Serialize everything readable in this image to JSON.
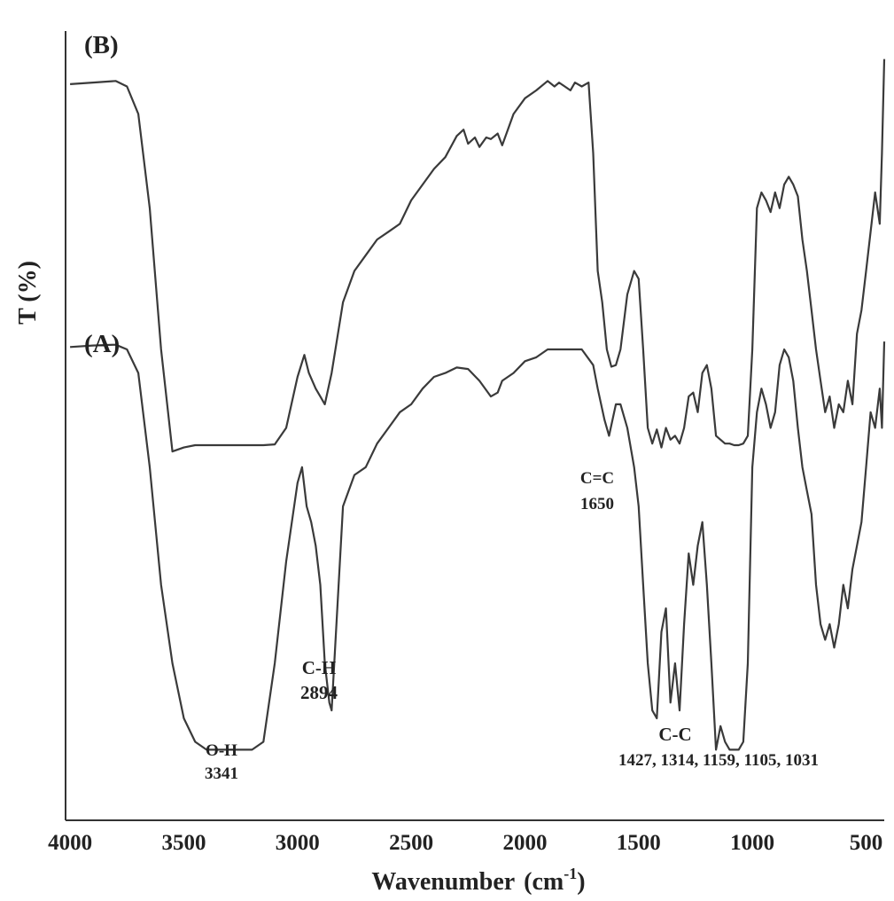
{
  "chart_data": {
    "type": "line",
    "xlabel": "Wavenumber",
    "xlabel_unit_base": "cm",
    "xlabel_unit_exp": "-1",
    "ylabel": "T (%)",
    "xlim": [
      4020,
      420
    ],
    "x_reversed": true,
    "ylim": [
      0,
      1
    ],
    "x_ticks": [
      4000,
      3500,
      3000,
      2500,
      2000,
      1500,
      1000,
      500
    ],
    "grid": false,
    "series": [
      {
        "name": "(B)",
        "x": [
          4000,
          3900,
          3800,
          3750,
          3700,
          3650,
          3600,
          3550,
          3500,
          3450,
          3400,
          3350,
          3300,
          3250,
          3200,
          3150,
          3100,
          3050,
          3000,
          2970,
          2950,
          2920,
          2900,
          2880,
          2850,
          2800,
          2750,
          2700,
          2650,
          2600,
          2550,
          2500,
          2450,
          2400,
          2350,
          2300,
          2270,
          2250,
          2220,
          2200,
          2170,
          2150,
          2120,
          2100,
          2050,
          2000,
          1950,
          1900,
          1870,
          1850,
          1800,
          1780,
          1750,
          1720,
          1700,
          1680,
          1660,
          1640,
          1620,
          1600,
          1580,
          1550,
          1520,
          1500,
          1480,
          1460,
          1440,
          1420,
          1400,
          1380,
          1360,
          1340,
          1320,
          1300,
          1280,
          1260,
          1240,
          1220,
          1200,
          1180,
          1160,
          1140,
          1120,
          1100,
          1080,
          1060,
          1040,
          1020,
          1000,
          980,
          960,
          940,
          920,
          900,
          880,
          860,
          840,
          820,
          800,
          780,
          760,
          740,
          720,
          700,
          680,
          660,
          640,
          620,
          600,
          580,
          560,
          540,
          520,
          500,
          480,
          460,
          440,
          430,
          420
        ],
        "y": [
          0.938,
          0.94,
          0.942,
          0.935,
          0.9,
          0.78,
          0.6,
          0.47,
          0.475,
          0.478,
          0.478,
          0.478,
          0.478,
          0.478,
          0.478,
          0.478,
          0.479,
          0.5,
          0.565,
          0.593,
          0.57,
          0.55,
          0.54,
          0.53,
          0.57,
          0.66,
          0.7,
          0.72,
          0.74,
          0.75,
          0.76,
          0.79,
          0.81,
          0.83,
          0.845,
          0.872,
          0.88,
          0.862,
          0.87,
          0.858,
          0.87,
          0.868,
          0.875,
          0.86,
          0.9,
          0.92,
          0.93,
          0.942,
          0.935,
          0.94,
          0.93,
          0.94,
          0.935,
          0.94,
          0.85,
          0.7,
          0.66,
          0.6,
          0.578,
          0.58,
          0.6,
          0.67,
          0.7,
          0.69,
          0.6,
          0.5,
          0.48,
          0.498,
          0.475,
          0.5,
          0.485,
          0.49,
          0.48,
          0.5,
          0.54,
          0.545,
          0.52,
          0.57,
          0.58,
          0.55,
          0.49,
          0.485,
          0.48,
          0.48,
          0.478,
          0.478,
          0.48,
          0.49,
          0.6,
          0.78,
          0.8,
          0.79,
          0.775,
          0.8,
          0.78,
          0.81,
          0.82,
          0.81,
          0.795,
          0.74,
          0.7,
          0.65,
          0.6,
          0.56,
          0.52,
          0.54,
          0.5,
          0.53,
          0.52,
          0.56,
          0.53,
          0.62,
          0.65,
          0.7,
          0.75,
          0.8,
          0.76,
          0.85,
          0.97
        ]
      },
      {
        "name": "(A)",
        "x": [
          4000,
          3900,
          3800,
          3750,
          3700,
          3650,
          3600,
          3550,
          3500,
          3450,
          3400,
          3350,
          3300,
          3250,
          3200,
          3150,
          3100,
          3050,
          3000,
          2980,
          2960,
          2940,
          2920,
          2900,
          2880,
          2860,
          2850,
          2800,
          2750,
          2700,
          2650,
          2600,
          2550,
          2500,
          2450,
          2400,
          2350,
          2300,
          2250,
          2200,
          2150,
          2120,
          2100,
          2050,
          2000,
          1950,
          1900,
          1850,
          1800,
          1750,
          1700,
          1680,
          1650,
          1630,
          1600,
          1580,
          1550,
          1520,
          1500,
          1480,
          1460,
          1440,
          1420,
          1400,
          1380,
          1360,
          1340,
          1320,
          1300,
          1280,
          1260,
          1240,
          1220,
          1200,
          1180,
          1160,
          1140,
          1120,
          1100,
          1080,
          1060,
          1040,
          1020,
          1000,
          980,
          960,
          940,
          920,
          900,
          880,
          860,
          840,
          820,
          800,
          780,
          760,
          740,
          720,
          700,
          680,
          660,
          640,
          620,
          600,
          580,
          560,
          540,
          520,
          500,
          480,
          460,
          440,
          430,
          420
        ],
        "y": [
          0.603,
          0.605,
          0.606,
          0.6,
          0.57,
          0.45,
          0.3,
          0.2,
          0.13,
          0.1,
          0.09,
          0.09,
          0.09,
          0.09,
          0.09,
          0.1,
          0.2,
          0.33,
          0.43,
          0.45,
          0.4,
          0.38,
          0.35,
          0.3,
          0.2,
          0.15,
          0.14,
          0.4,
          0.44,
          0.45,
          0.48,
          0.5,
          0.52,
          0.53,
          0.55,
          0.565,
          0.57,
          0.577,
          0.575,
          0.56,
          0.54,
          0.545,
          0.56,
          0.57,
          0.585,
          0.59,
          0.6,
          0.6,
          0.6,
          0.6,
          0.58,
          0.55,
          0.51,
          0.49,
          0.53,
          0.53,
          0.5,
          0.45,
          0.4,
          0.3,
          0.2,
          0.14,
          0.13,
          0.24,
          0.27,
          0.15,
          0.2,
          0.14,
          0.25,
          0.34,
          0.3,
          0.35,
          0.38,
          0.3,
          0.2,
          0.09,
          0.12,
          0.1,
          0.09,
          0.09,
          0.09,
          0.1,
          0.2,
          0.45,
          0.52,
          0.55,
          0.53,
          0.5,
          0.52,
          0.58,
          0.6,
          0.59,
          0.56,
          0.5,
          0.45,
          0.42,
          0.39,
          0.3,
          0.25,
          0.23,
          0.25,
          0.22,
          0.25,
          0.3,
          0.27,
          0.32,
          0.35,
          0.38,
          0.45,
          0.52,
          0.5,
          0.55,
          0.5,
          0.61
        ]
      }
    ],
    "annotations": [
      {
        "label": "O-H",
        "value": "3341"
      },
      {
        "label": "C-H",
        "value": "2894"
      },
      {
        "label": "C=C",
        "value": "1650"
      },
      {
        "label": "C-C",
        "value": "1427, 1314, 1159, 1105, 1031"
      }
    ]
  }
}
